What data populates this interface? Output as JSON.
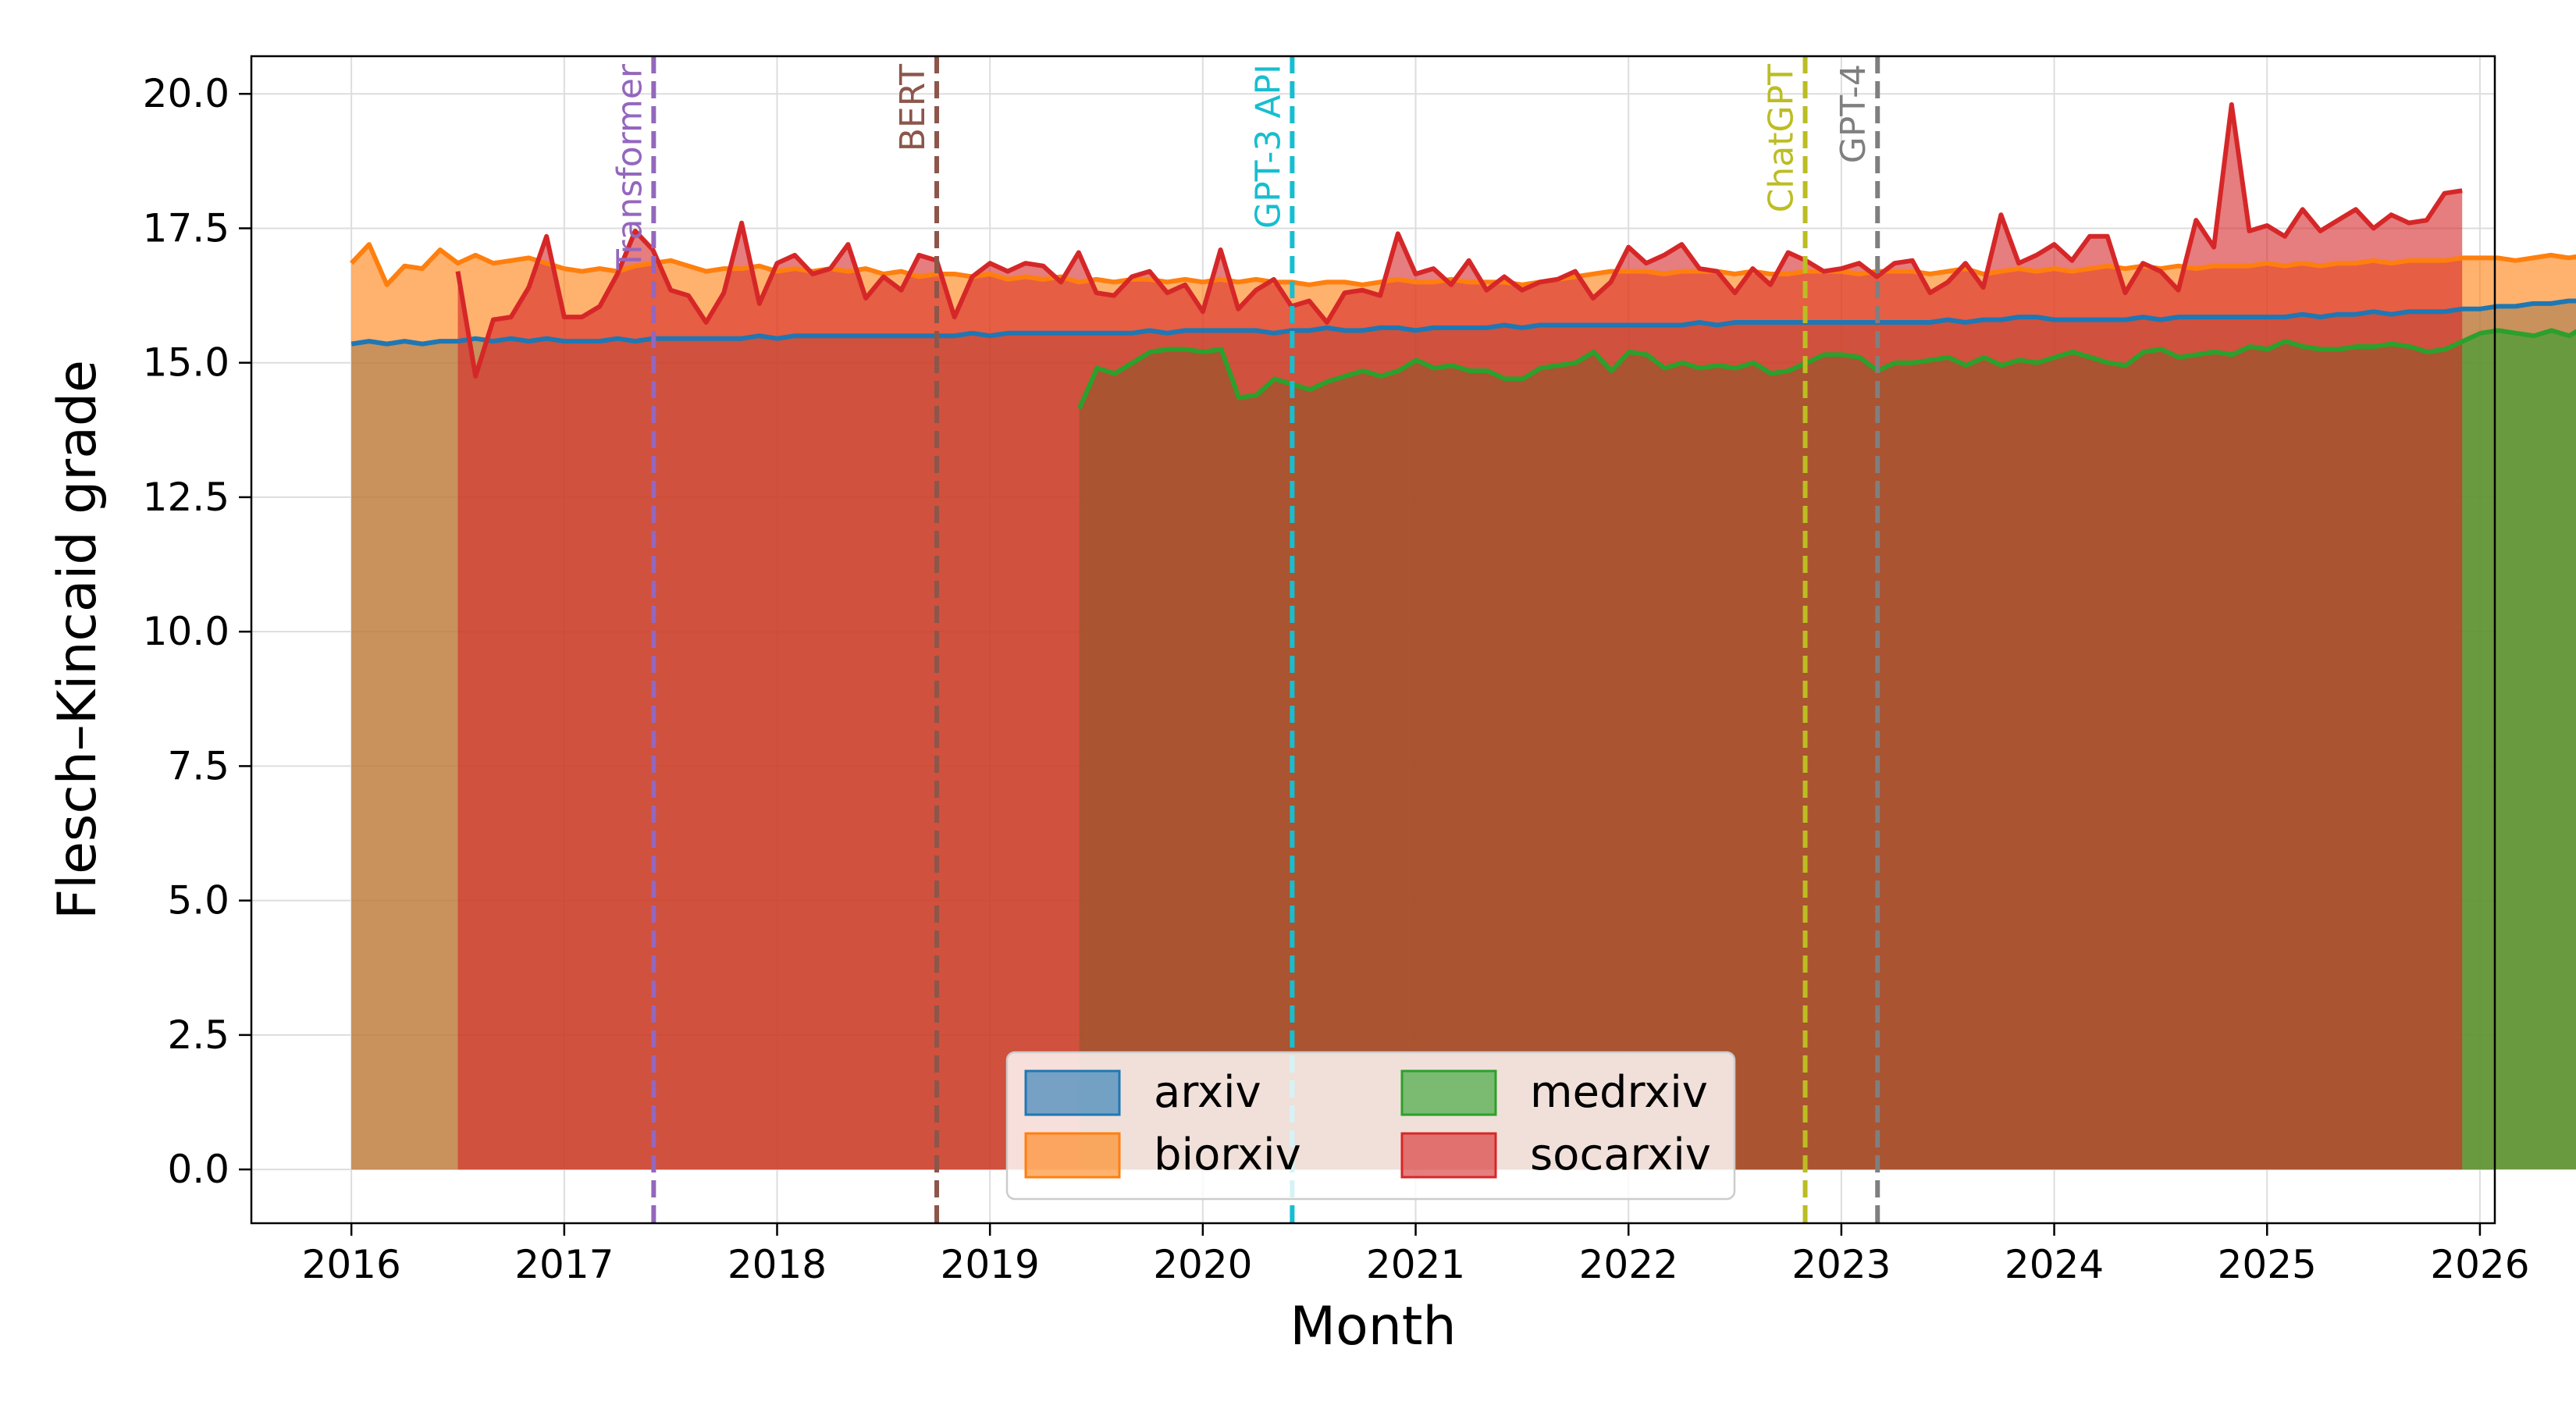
{
  "chart_data": {
    "type": "area",
    "xlabel": "Month",
    "ylabel": "Flesch–Kincaid grade",
    "xlim": [
      2015.53,
      2026.07
    ],
    "ylim": [
      -1.0,
      20.7
    ],
    "x_ticks": [
      2016,
      2017,
      2018,
      2019,
      2020,
      2021,
      2022,
      2023,
      2024,
      2025,
      2026
    ],
    "x_tick_labels": [
      "2016",
      "2017",
      "2018",
      "2019",
      "2020",
      "2021",
      "2022",
      "2023",
      "2024",
      "2025",
      "2026"
    ],
    "y_ticks": [
      0,
      2.5,
      5,
      7.5,
      10,
      12.5,
      15,
      17.5,
      20
    ],
    "y_tick_labels": [
      "0.0",
      "2.5",
      "5.0",
      "7.5",
      "10.0",
      "12.5",
      "15.0",
      "17.5",
      "20.0"
    ],
    "grid": true,
    "legend": {
      "position": "lower center",
      "columns": 2
    },
    "series": [
      {
        "name": "arxiv",
        "color": "#1f77b4",
        "start": 2016.0,
        "values": [
          15.35,
          15.4,
          15.35,
          15.4,
          15.35,
          15.4,
          15.4,
          15.45,
          15.4,
          15.45,
          15.4,
          15.45,
          15.4,
          15.4,
          15.4,
          15.45,
          15.4,
          15.45,
          15.45,
          15.45,
          15.45,
          15.45,
          15.45,
          15.5,
          15.45,
          15.5,
          15.5,
          15.5,
          15.5,
          15.5,
          15.5,
          15.5,
          15.5,
          15.5,
          15.5,
          15.55,
          15.5,
          15.55,
          15.55,
          15.55,
          15.55,
          15.55,
          15.55,
          15.55,
          15.55,
          15.6,
          15.55,
          15.6,
          15.6,
          15.6,
          15.6,
          15.6,
          15.55,
          15.6,
          15.6,
          15.65,
          15.6,
          15.6,
          15.65,
          15.65,
          15.6,
          15.65,
          15.65,
          15.65,
          15.65,
          15.7,
          15.65,
          15.7,
          15.7,
          15.7,
          15.7,
          15.7,
          15.7,
          15.7,
          15.7,
          15.7,
          15.75,
          15.7,
          15.75,
          15.75,
          15.75,
          15.75,
          15.75,
          15.75,
          15.75,
          15.75,
          15.75,
          15.75,
          15.75,
          15.75,
          15.8,
          15.75,
          15.8,
          15.8,
          15.85,
          15.85,
          15.8,
          15.8,
          15.8,
          15.8,
          15.8,
          15.85,
          15.8,
          15.85,
          15.85,
          15.85,
          15.85,
          15.85,
          15.85,
          15.85,
          15.9,
          15.85,
          15.9,
          15.9,
          15.95,
          15.9,
          15.95,
          15.95,
          15.95,
          16.0,
          16.0,
          16.05,
          16.05,
          16.1,
          16.1,
          16.15,
          16.15,
          16.2,
          16.2,
          16.2,
          16.25,
          16.25,
          16.3,
          16.3,
          16.3,
          16.35,
          16.4,
          16.4,
          16.45,
          16.45,
          16.5,
          16.55,
          16.6,
          16.7,
          16.75,
          16.8,
          16.85,
          16.85,
          16.85,
          16.9,
          16.95
        ]
      },
      {
        "name": "biorxiv",
        "color": "#ff7f0e",
        "start": 2016.0,
        "values": [
          16.85,
          17.2,
          16.45,
          16.8,
          16.75,
          17.1,
          16.85,
          17.0,
          16.85,
          16.9,
          16.95,
          16.85,
          16.75,
          16.7,
          16.75,
          16.7,
          16.8,
          16.85,
          16.9,
          16.8,
          16.7,
          16.75,
          16.75,
          16.8,
          16.7,
          16.75,
          16.7,
          16.75,
          16.7,
          16.75,
          16.65,
          16.7,
          16.6,
          16.65,
          16.65,
          16.6,
          16.65,
          16.55,
          16.6,
          16.55,
          16.6,
          16.5,
          16.55,
          16.5,
          16.55,
          16.55,
          16.5,
          16.55,
          16.5,
          16.55,
          16.5,
          16.55,
          16.5,
          16.5,
          16.45,
          16.5,
          16.5,
          16.45,
          16.5,
          16.55,
          16.5,
          16.5,
          16.55,
          16.5,
          16.5,
          16.5,
          16.45,
          16.5,
          16.55,
          16.6,
          16.65,
          16.7,
          16.7,
          16.7,
          16.65,
          16.7,
          16.7,
          16.7,
          16.65,
          16.7,
          16.65,
          16.65,
          16.7,
          16.7,
          16.7,
          16.65,
          16.7,
          16.7,
          16.7,
          16.65,
          16.7,
          16.75,
          16.65,
          16.7,
          16.75,
          16.7,
          16.75,
          16.7,
          16.75,
          16.8,
          16.75,
          16.8,
          16.75,
          16.8,
          16.75,
          16.8,
          16.8,
          16.8,
          16.85,
          16.8,
          16.85,
          16.8,
          16.85,
          16.85,
          16.9,
          16.85,
          16.9,
          16.9,
          16.9,
          16.95,
          16.95,
          16.95,
          16.9,
          16.95,
          17.0,
          16.95,
          17.0,
          17.0,
          17.05,
          17.0,
          17.05,
          17.05,
          17.0,
          17.05,
          17.05,
          17.1,
          17.05,
          17.1,
          17.15,
          17.1,
          17.15,
          17.2,
          17.25,
          17.3,
          17.3,
          17.35,
          17.4,
          17.45,
          17.5,
          17.5,
          17.55
        ]
      },
      {
        "name": "medrxiv",
        "color": "#2ca02c",
        "start": 2019.42,
        "values": [
          14.15,
          14.9,
          14.8,
          15.0,
          15.2,
          15.25,
          15.25,
          15.2,
          15.25,
          14.35,
          14.4,
          14.7,
          14.6,
          14.5,
          14.65,
          14.75,
          14.85,
          14.75,
          14.85,
          15.05,
          14.9,
          14.95,
          14.85,
          14.85,
          14.7,
          14.7,
          14.9,
          14.95,
          15.0,
          15.2,
          14.85,
          15.2,
          15.15,
          14.9,
          15.0,
          14.9,
          14.95,
          14.9,
          15.0,
          14.8,
          14.85,
          15.0,
          15.15,
          15.15,
          15.1,
          14.85,
          15.0,
          15.0,
          15.05,
          15.1,
          14.95,
          15.1,
          14.95,
          15.05,
          15.0,
          15.1,
          15.2,
          15.1,
          15.0,
          14.95,
          15.2,
          15.25,
          15.1,
          15.15,
          15.2,
          15.15,
          15.3,
          15.25,
          15.4,
          15.3,
          15.25,
          15.25,
          15.3,
          15.3,
          15.35,
          15.3,
          15.2,
          15.25,
          15.4,
          15.55,
          15.6,
          15.55,
          15.5,
          15.6,
          15.5,
          15.7,
          15.3
        ]
      },
      {
        "name": "socarxiv",
        "color": "#d62728",
        "start": 2016.5,
        "values": [
          16.7,
          14.75,
          15.8,
          15.85,
          16.4,
          17.35,
          15.85,
          15.85,
          16.05,
          16.65,
          17.45,
          17.1,
          16.35,
          16.25,
          15.75,
          16.3,
          17.6,
          16.1,
          16.85,
          17.0,
          16.65,
          16.75,
          17.2,
          16.2,
          16.6,
          16.35,
          17.0,
          16.9,
          15.85,
          16.6,
          16.85,
          16.7,
          16.85,
          16.8,
          16.5,
          17.05,
          16.3,
          16.25,
          16.6,
          16.7,
          16.3,
          16.45,
          15.95,
          17.1,
          16.0,
          16.35,
          16.55,
          16.05,
          16.15,
          15.75,
          16.3,
          16.35,
          16.25,
          17.4,
          16.65,
          16.75,
          16.45,
          16.9,
          16.35,
          16.6,
          16.35,
          16.5,
          16.55,
          16.7,
          16.2,
          16.5,
          17.15,
          16.85,
          17.0,
          17.2,
          16.75,
          16.7,
          16.3,
          16.75,
          16.45,
          17.05,
          16.9,
          16.7,
          16.75,
          16.85,
          16.6,
          16.85,
          16.9,
          16.3,
          16.5,
          16.85,
          16.4,
          17.75,
          16.85,
          17.0,
          17.2,
          16.9,
          17.35,
          17.35,
          16.3,
          16.85,
          16.7,
          16.35,
          17.65,
          17.15,
          19.8,
          17.45,
          17.55,
          17.35,
          17.85,
          17.45,
          17.65,
          17.85,
          17.5,
          17.75,
          17.6,
          17.65,
          18.15,
          18.2
        ]
      }
    ],
    "events": [
      {
        "label": "Transformer",
        "x": 2017.42,
        "color": "#9467bd"
      },
      {
        "label": "BERT",
        "x": 2018.75,
        "color": "#8c564b"
      },
      {
        "label": "GPT-3 API",
        "x": 2020.42,
        "color": "#17becf"
      },
      {
        "label": "ChatGPT",
        "x": 2022.83,
        "color": "#bcbd22"
      },
      {
        "label": "GPT-4",
        "x": 2023.17,
        "color": "#7f7f7f"
      }
    ]
  }
}
